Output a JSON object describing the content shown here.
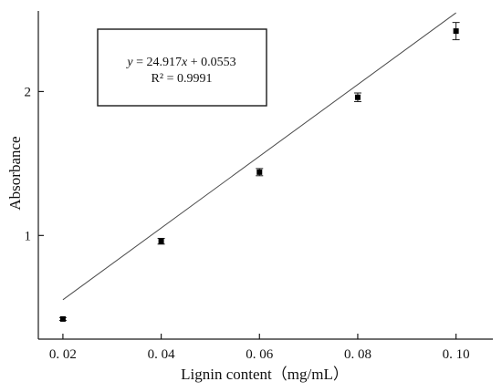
{
  "chart_data": {
    "type": "scatter",
    "xlabel": "Lignin content（mg/mL）",
    "ylabel": "Absorbance",
    "xlim": [
      0.015,
      0.1075
    ],
    "ylim": [
      0.28,
      2.56
    ],
    "x_ticks": [
      0.02,
      0.04,
      0.06,
      0.08,
      0.1
    ],
    "x_tick_labels": [
      "0. 02",
      "0. 04",
      "0. 06",
      "0. 08",
      "0. 10"
    ],
    "y_ticks": [
      1,
      2
    ],
    "y_tick_labels": [
      "1",
      "2"
    ],
    "grid": false,
    "series": [
      {
        "x": [
          0.02,
          0.04,
          0.06,
          0.08,
          0.1
        ],
        "y": [
          0.42,
          0.96,
          1.44,
          1.96,
          2.42
        ],
        "error": [
          0.01,
          0.02,
          0.025,
          0.03,
          0.06
        ]
      }
    ],
    "fit": {
      "slope": 24.917,
      "intercept": 0.0553,
      "x_range": [
        0.02,
        0.1
      ]
    },
    "annotation": {
      "eq_y": "y",
      "eq_middle": " = 24.917",
      "eq_x": "x",
      "eq_rest": " + 0.0553",
      "r2": "R² = 0.9991"
    }
  }
}
